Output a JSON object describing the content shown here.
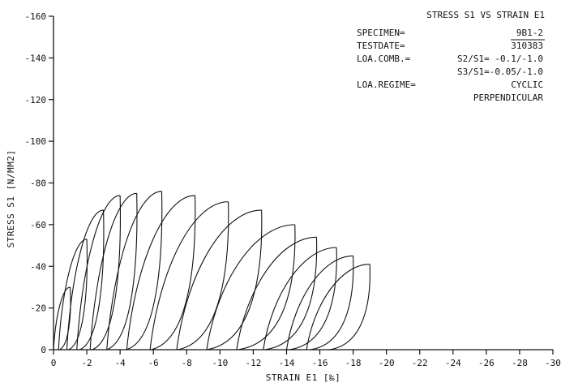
{
  "chart_data": {
    "type": "line",
    "title": "STRESS S1 VS STRAIN E1",
    "xlabel": "STRAIN E1 [‰]",
    "ylabel": "STRESS S1 [N/MM2]",
    "xlim": [
      0,
      -30
    ],
    "ylim": [
      0,
      -160
    ],
    "x_ticks": [
      "0",
      "-2",
      "-4",
      "-6",
      "-8",
      "-10",
      "-12",
      "-14",
      "-16",
      "-18",
      "-20",
      "-22",
      "-24",
      "-26",
      "-28",
      "-30"
    ],
    "y_ticks": [
      "0",
      "-20",
      "-40",
      "-60",
      "-80",
      "-100",
      "-120",
      "-140",
      "-160"
    ],
    "grid": false,
    "info": {
      "specimen_label": "SPECIMEN=",
      "specimen_value": "9B1-2",
      "testdate_label": "TESTDATE=",
      "testdate_value": "310383",
      "loadcomb_label": "LOA.COMB.=",
      "loadcomb_value1": "S2/S1= -0.1/-1.0",
      "loadcomb_value2": "S3/S1=-0.05/-1.0",
      "regime_label": "LOA.REGIME=",
      "regime_value1": "CYCLIC",
      "regime_value2": "PERPENDICULAR"
    },
    "loading_cycles": [
      {
        "residual_strain": 0.0,
        "peak_strain": -1.0,
        "peak_stress": -30
      },
      {
        "residual_strain": -0.3,
        "peak_strain": -2.0,
        "peak_stress": -53
      },
      {
        "residual_strain": -0.8,
        "peak_strain": -3.0,
        "peak_stress": -67
      },
      {
        "residual_strain": -1.4,
        "peak_strain": -4.0,
        "peak_stress": -74
      },
      {
        "residual_strain": -2.2,
        "peak_strain": -5.0,
        "peak_stress": -75
      },
      {
        "residual_strain": -3.2,
        "peak_strain": -6.5,
        "peak_stress": -76
      },
      {
        "residual_strain": -4.4,
        "peak_strain": -8.5,
        "peak_stress": -74
      },
      {
        "residual_strain": -5.8,
        "peak_strain": -10.5,
        "peak_stress": -71
      },
      {
        "residual_strain": -7.4,
        "peak_strain": -12.5,
        "peak_stress": -67
      },
      {
        "residual_strain": -9.2,
        "peak_strain": -14.5,
        "peak_stress": -60
      },
      {
        "residual_strain": -11.0,
        "peak_strain": -15.8,
        "peak_stress": -54
      },
      {
        "residual_strain": -12.6,
        "peak_strain": -17.0,
        "peak_stress": -49
      },
      {
        "residual_strain": -14.0,
        "peak_strain": -18.0,
        "peak_stress": -45
      },
      {
        "residual_strain": -15.2,
        "peak_strain": -19.0,
        "peak_stress": -41
      }
    ]
  }
}
